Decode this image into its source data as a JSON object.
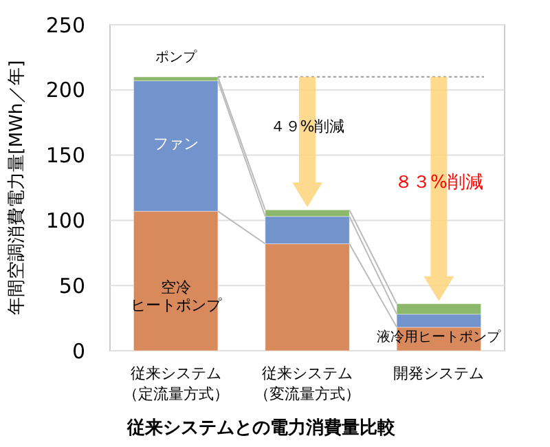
{
  "chart_data": {
    "type": "bar",
    "stacked": true,
    "title": "従来システムとの電力消費量比較",
    "ylabel": "年間空調消費電力量[MWh／年]",
    "categories": [
      "従来システム（定流量方式）",
      "従来システム（変流量方式）",
      "開発システム"
    ],
    "series": [
      {
        "color": "#d98a5c",
        "values": [
          107,
          82,
          18
        ]
      },
      {
        "color": "#7393cc",
        "values": [
          100,
          21,
          10
        ]
      },
      {
        "color": "#8cb86c",
        "values": [
          3,
          5,
          8
        ]
      }
    ],
    "ylim": [
      0,
      250
    ],
    "yticks": [
      0,
      50,
      100,
      150,
      200,
      250
    ],
    "grid": "y",
    "ref_lines": [
      {
        "axis": "y",
        "value": 210,
        "line_style": "dotted",
        "color": "#999999"
      }
    ],
    "annotations": [
      "ポンプ",
      "ファン",
      "空冷ヒートポンプ",
      {
        "text": "液冷用ヒートポンプ",
        "x": "開発システム",
        "y": 18
      },
      "４９%削減",
      "８３%削減"
    ]
  }
}
